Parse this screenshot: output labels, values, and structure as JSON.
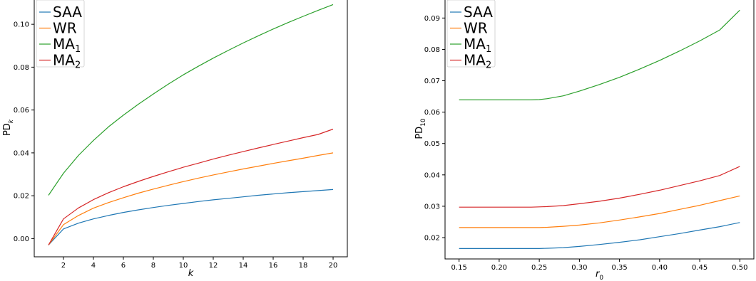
{
  "chart_data": [
    {
      "type": "line",
      "xlabel": "k",
      "ylabel": "PD",
      "ylabel_sub": "k",
      "xlim": [
        0.05,
        20.95
      ],
      "ylim": [
        -0.0085,
        0.112
      ],
      "xticks": [
        2,
        4,
        6,
        8,
        10,
        12,
        14,
        16,
        18,
        20
      ],
      "yticks": [
        0.0,
        0.02,
        0.04,
        0.06,
        0.08,
        0.1
      ],
      "ytick_labels": [
        "0.00",
        "0.02",
        "0.04",
        "0.06",
        "0.08",
        "0.10"
      ],
      "legend": "top-left",
      "x": [
        1,
        2,
        3,
        4,
        5,
        6,
        7,
        8,
        9,
        10,
        11,
        12,
        13,
        14,
        15,
        16,
        17,
        18,
        19,
        20
      ],
      "series": [
        {
          "name": "SAA",
          "sub": "",
          "color": "#1f77b4",
          "values": [
            -0.003,
            0.0045,
            0.0072,
            0.0092,
            0.0108,
            0.0122,
            0.0134,
            0.0145,
            0.0155,
            0.0164,
            0.0173,
            0.0181,
            0.0188,
            0.0195,
            0.0202,
            0.0208,
            0.0214,
            0.0219,
            0.0224,
            0.0229
          ]
        },
        {
          "name": "WR",
          "sub": "",
          "color": "#ff7f0e",
          "values": [
            -0.003,
            0.0065,
            0.0108,
            0.0142,
            0.0168,
            0.0191,
            0.0212,
            0.0231,
            0.0249,
            0.0266,
            0.0282,
            0.0297,
            0.0311,
            0.0325,
            0.0338,
            0.0351,
            0.0363,
            0.0375,
            0.0388,
            0.04
          ]
        },
        {
          "name": "MA",
          "sub": "1",
          "color": "#2ca02c",
          "values": [
            0.0202,
            0.0305,
            0.0388,
            0.0458,
            0.0521,
            0.0576,
            0.0627,
            0.0675,
            0.0721,
            0.0764,
            0.0804,
            0.0842,
            0.0878,
            0.0913,
            0.0946,
            0.0978,
            0.1008,
            0.1037,
            0.1065,
            0.1092
          ]
        },
        {
          "name": "MA",
          "sub": "2",
          "color": "#d62728",
          "values": [
            -0.003,
            0.0092,
            0.0143,
            0.0182,
            0.0214,
            0.0242,
            0.0267,
            0.029,
            0.0312,
            0.0333,
            0.0352,
            0.0371,
            0.0389,
            0.0406,
            0.0423,
            0.0439,
            0.0455,
            0.0471,
            0.0486,
            0.0511
          ]
        }
      ]
    },
    {
      "type": "line",
      "xlabel": "r",
      "xlabel_sub": "0",
      "ylabel": "PD",
      "ylabel_sub": "10",
      "xlim": [
        0.1325,
        0.5175
      ],
      "ylim": [
        0.0132,
        0.0962
      ],
      "xticks": [
        0.15,
        0.2,
        0.25,
        0.3,
        0.35,
        0.4,
        0.45,
        0.5
      ],
      "xtick_labels": [
        "0.15",
        "0.20",
        "0.25",
        "0.30",
        "0.35",
        "0.40",
        "0.45",
        "0.50"
      ],
      "yticks": [
        0.02,
        0.03,
        0.04,
        0.05,
        0.06,
        0.07,
        0.08,
        0.09
      ],
      "ytick_labels": [
        "0.02",
        "0.03",
        "0.04",
        "0.05",
        "0.06",
        "0.07",
        "0.08",
        "0.09"
      ],
      "legend": "top-left",
      "x": [
        0.15,
        0.2,
        0.24,
        0.25,
        0.26,
        0.28,
        0.3,
        0.325,
        0.35,
        0.375,
        0.4,
        0.425,
        0.45,
        0.475,
        0.5
      ],
      "series": [
        {
          "name": "SAA",
          "sub": "",
          "color": "#1f77b4",
          "values": [
            0.0165,
            0.0165,
            0.0165,
            0.0165,
            0.0166,
            0.0168,
            0.0172,
            0.0178,
            0.0185,
            0.0193,
            0.0203,
            0.0213,
            0.0224,
            0.0235,
            0.0248
          ]
        },
        {
          "name": "WR",
          "sub": "",
          "color": "#ff7f0e",
          "values": [
            0.0232,
            0.0232,
            0.0232,
            0.0232,
            0.0233,
            0.0236,
            0.024,
            0.0247,
            0.0256,
            0.0266,
            0.0277,
            0.029,
            0.0303,
            0.0318,
            0.0333
          ]
        },
        {
          "name": "MA",
          "sub": "1",
          "color": "#2ca02c",
          "values": [
            0.0639,
            0.0639,
            0.0639,
            0.064,
            0.0643,
            0.0652,
            0.0667,
            0.0688,
            0.0711,
            0.0737,
            0.0765,
            0.0795,
            0.0827,
            0.0862,
            0.0925
          ]
        },
        {
          "name": "MA",
          "sub": "2",
          "color": "#d62728",
          "values": [
            0.0297,
            0.0297,
            0.0297,
            0.0298,
            0.0299,
            0.0302,
            0.0308,
            0.0316,
            0.0326,
            0.0338,
            0.0351,
            0.0366,
            0.0381,
            0.0398,
            0.0427
          ]
        }
      ]
    }
  ]
}
